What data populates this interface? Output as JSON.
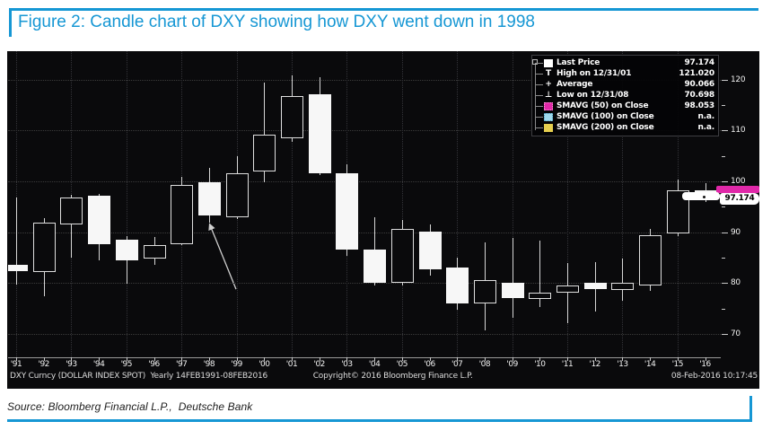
{
  "figure": {
    "title": "Figure 2: Candle chart of DXY showing how DXY went down in 1998",
    "source_line": "Source: Bloomberg Financial L.P.,  Deutsche Bank"
  },
  "colors": {
    "accent_blue": "#1697d4",
    "panel_bg": "#0a0a0c",
    "candle_white": "#f7f7f7",
    "smavg50_magenta": "#e028a8",
    "smavg100_cyan": "#9ed8ec",
    "smavg200_yellow": "#e6cf4f"
  },
  "chart_data": {
    "type": "candlestick",
    "title": "",
    "symbol_line": "DXY Curncy (DOLLAR INDEX SPOT)  Yearly 14FEB1991-08FEB2016",
    "copyright_line": "Copyright© 2016 Bloomberg Finance L.P.",
    "timestamp": "08-Feb-2016 10:17:45",
    "ylim": [
      65.4,
      125.6
    ],
    "y_ticks": [
      120,
      110,
      100,
      90,
      80,
      70
    ],
    "y_minor_ticks": [
      115,
      105,
      95,
      85,
      75
    ],
    "grid": "dotted, horizontal at 10s, vertical every 2 years",
    "legend_position": "top-right",
    "legend": [
      {
        "icon": "last-price-swatch",
        "label": "Last Price",
        "value": "97.174"
      },
      {
        "icon": "high-marker",
        "label": "High on 12/31/01",
        "value": "121.020"
      },
      {
        "icon": "average-marker",
        "label": "Average",
        "value": "90.066"
      },
      {
        "icon": "low-marker",
        "label": "Low on 12/31/08",
        "value": "70.698"
      },
      {
        "icon": "smavg50-swatch",
        "label": "SMAVG (50) on Close",
        "value": "98.053"
      },
      {
        "icon": "smavg100-swatch",
        "label": "SMAVG (100) on Close",
        "value": "n.a."
      },
      {
        "icon": "smavg200-swatch",
        "label": "SMAVG (200) on Close",
        "value": "n.a."
      }
    ],
    "last_price": "97.174",
    "smavg50_level": 98.053,
    "candles": [
      {
        "label": "'91",
        "open": 83.5,
        "high": 96.9,
        "low": 79.7,
        "close": 82.4
      },
      {
        "label": "'92",
        "open": 82.2,
        "high": 92.7,
        "low": 77.4,
        "close": 91.9
      },
      {
        "label": "'93",
        "open": 91.5,
        "high": 97.3,
        "low": 85.0,
        "close": 96.8
      },
      {
        "label": "'94",
        "open": 97.2,
        "high": 97.6,
        "low": 84.4,
        "close": 87.7
      },
      {
        "label": "'95",
        "open": 88.5,
        "high": 89.2,
        "low": 79.9,
        "close": 84.5
      },
      {
        "label": "'96",
        "open": 84.8,
        "high": 89.0,
        "low": 83.6,
        "close": 87.5
      },
      {
        "label": "'97",
        "open": 87.7,
        "high": 100.8,
        "low": 87.4,
        "close": 99.3
      },
      {
        "label": "'98",
        "open": 99.8,
        "high": 102.7,
        "low": 91.9,
        "close": 93.3
      },
      {
        "label": "'99",
        "open": 93.0,
        "high": 105.0,
        "low": 92.6,
        "close": 101.6
      },
      {
        "label": "'00",
        "open": 102.0,
        "high": 119.4,
        "low": 99.9,
        "close": 109.2
      },
      {
        "label": "'01",
        "open": 108.5,
        "high": 120.9,
        "low": 107.8,
        "close": 116.8
      },
      {
        "label": "'02",
        "open": 117.1,
        "high": 120.5,
        "low": 101.2,
        "close": 101.6
      },
      {
        "label": "'03",
        "open": 101.6,
        "high": 103.3,
        "low": 85.3,
        "close": 86.5
      },
      {
        "label": "'04",
        "open": 86.5,
        "high": 92.9,
        "low": 79.5,
        "close": 80.0
      },
      {
        "label": "'05",
        "open": 80.0,
        "high": 92.4,
        "low": 79.6,
        "close": 90.6
      },
      {
        "label": "'06",
        "open": 90.1,
        "high": 91.5,
        "low": 81.5,
        "close": 82.7
      },
      {
        "label": "'07",
        "open": 83.0,
        "high": 85.0,
        "low": 74.7,
        "close": 76.0
      },
      {
        "label": "'08",
        "open": 76.0,
        "high": 88.0,
        "low": 70.7,
        "close": 80.6
      },
      {
        "label": "'09",
        "open": 80.0,
        "high": 88.9,
        "low": 73.2,
        "close": 77.0
      },
      {
        "label": "'10",
        "open": 76.8,
        "high": 88.4,
        "low": 75.3,
        "close": 78.1
      },
      {
        "label": "'11",
        "open": 78.1,
        "high": 83.9,
        "low": 72.1,
        "close": 79.5
      },
      {
        "label": "'12",
        "open": 80.0,
        "high": 84.1,
        "low": 74.4,
        "close": 78.8
      },
      {
        "label": "'13",
        "open": 78.7,
        "high": 84.8,
        "low": 76.5,
        "close": 80.0
      },
      {
        "label": "'14",
        "open": 79.6,
        "high": 90.6,
        "low": 78.5,
        "close": 89.4
      },
      {
        "label": "'15",
        "open": 89.8,
        "high": 100.4,
        "low": 89.3,
        "close": 98.3
      },
      {
        "label": "'16",
        "open": 98.3,
        "high": 99.6,
        "low": 95.9,
        "close": 97.2
      }
    ],
    "annotation": {
      "type": "arrow",
      "points_to": "1998 candle",
      "tail": {
        "index": 7.98,
        "value": 78.8
      },
      "head": {
        "index": 7.02,
        "value": 91.6
      }
    }
  }
}
